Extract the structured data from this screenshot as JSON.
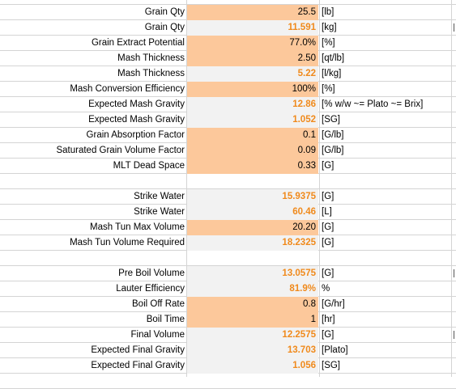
{
  "colors": {
    "input_fill": "#fcc89b",
    "calc_fill": "#f2f2f2",
    "calc_text": "#f08a1c",
    "grid": "#d4d4d4"
  },
  "rows": [
    {
      "label": "Grain Qty",
      "value": "25.5",
      "unit": "[lb]",
      "style": "input"
    },
    {
      "label": "Grain Qty",
      "value": "11.591",
      "unit": "[kg]",
      "style": "calc",
      "tail": true
    },
    {
      "label": "Grain Extract Potential",
      "value": "77.0%",
      "unit": "[%]",
      "style": "input"
    },
    {
      "label": "Mash Thickness",
      "value": "2.50",
      "unit": "[qt/lb]",
      "style": "input"
    },
    {
      "label": "Mash Thickness",
      "value": "5.22",
      "unit": "[l/kg]",
      "style": "calc"
    },
    {
      "label": "Mash Conversion Efficiency",
      "value": "100%",
      "unit": "[%]",
      "style": "input"
    },
    {
      "label": "Expected Mash Gravity",
      "value": "12.86",
      "unit": "[% w/w ~= Plato ~= Brix]",
      "style": "calc"
    },
    {
      "label": "Expected Mash Gravity",
      "value": "1.052",
      "unit": "[SG]",
      "style": "calc"
    },
    {
      "label": "Grain Absorption Factor",
      "value": "0.1",
      "unit": "[G/lb]",
      "style": "input"
    },
    {
      "label": "Saturated Grain Volume Factor",
      "value": "0.09",
      "unit": "[G/lb]",
      "style": "input"
    },
    {
      "label": "MLT Dead Space",
      "value": "0.33",
      "unit": "[G]",
      "style": "input"
    },
    null,
    {
      "label": "Strike Water",
      "value": "15.9375",
      "unit": "[G]",
      "style": "calc"
    },
    {
      "label": "Strike Water",
      "value": "60.46",
      "unit": "[L]",
      "style": "calc"
    },
    {
      "label": "Mash Tun Max Volume",
      "value": "20.20",
      "unit": "[G]",
      "style": "input"
    },
    {
      "label": "Mash Tun Volume Required",
      "value": "18.2325",
      "unit": "[G]",
      "style": "calc"
    },
    null,
    {
      "label": "Pre Boil Volume",
      "value": "13.0575",
      "unit": "[G]",
      "style": "calc",
      "tail": true
    },
    {
      "label": "Lauter Efficiency",
      "value": "81.9%",
      "unit": "%",
      "style": "calc"
    },
    {
      "label": "Boil Off Rate",
      "value": "0.8",
      "unit": "[G/hr]",
      "style": "input"
    },
    {
      "label": "Boil Time",
      "value": "1",
      "unit": "[hr]",
      "style": "input"
    },
    {
      "label": "Final Volume",
      "value": "12.2575",
      "unit": "[G]",
      "style": "calc",
      "tail": true
    },
    {
      "label": "Expected Final Gravity",
      "value": "13.703",
      "unit": "[Plato]",
      "style": "calc"
    },
    {
      "label": "Expected Final Gravity",
      "value": "1.056",
      "unit": "[SG]",
      "style": "calc"
    }
  ]
}
